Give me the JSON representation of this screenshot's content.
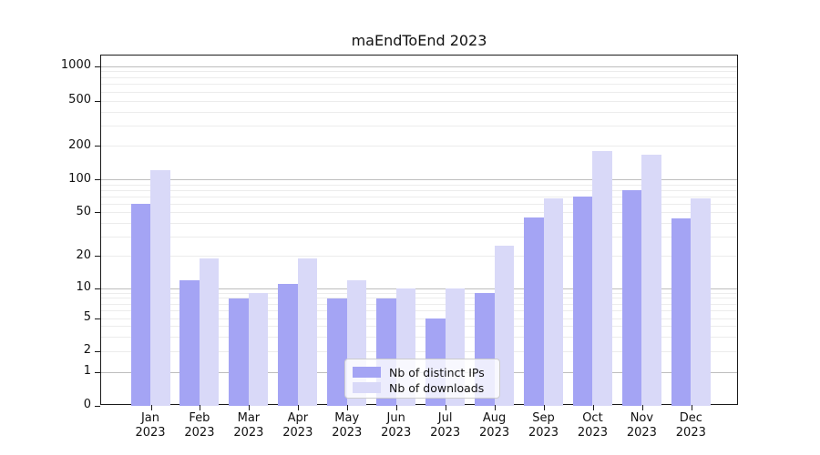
{
  "chart_data": {
    "type": "bar",
    "title": "maEndToEnd 2023",
    "categories": [
      "Jan 2023",
      "Feb 2023",
      "Mar 2023",
      "Apr 2023",
      "May 2023",
      "Jun 2023",
      "Jul 2023",
      "Aug 2023",
      "Sep 2023",
      "Oct 2023",
      "Nov 2023",
      "Dec 2023"
    ],
    "series": [
      {
        "name": "Nb of distinct IPs",
        "color": "#a4a4f4",
        "values": [
          60,
          12,
          8,
          11,
          8,
          8,
          5,
          9,
          45,
          70,
          80,
          44
        ]
      },
      {
        "name": "Nb of downloads",
        "color": "#d9d9f8",
        "values": [
          123,
          19,
          9,
          19,
          12,
          10,
          10,
          25,
          68,
          180,
          167,
          68
        ]
      }
    ],
    "xlabel": "",
    "ylabel": "",
    "yscale": "symlog",
    "ylim": [
      0,
      1250
    ],
    "y_ticks": [
      0,
      1,
      2,
      5,
      10,
      20,
      50,
      100,
      200,
      500,
      1000
    ],
    "y_major_gridlines": [
      1,
      10,
      100,
      1000
    ],
    "y_minor_gridlines": [
      2,
      3,
      4,
      5,
      6,
      7,
      8,
      9,
      20,
      30,
      40,
      50,
      60,
      70,
      80,
      90,
      200,
      300,
      400,
      500,
      600,
      700,
      800,
      900
    ],
    "grid": true,
    "legend_position": "inside lower center"
  }
}
